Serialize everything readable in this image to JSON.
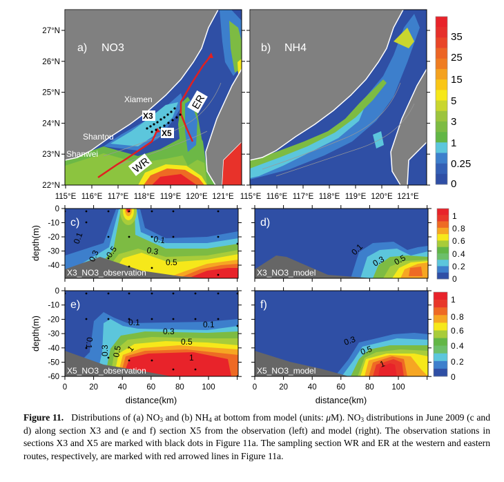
{
  "map_panels": {
    "a": {
      "label": "a)",
      "title": "NO3"
    },
    "b": {
      "label": "b)",
      "title": "NH4"
    },
    "places": {
      "xiamen": "Xiamen",
      "shantou": "Shantou",
      "shanwei": "Shanwei"
    },
    "sections": {
      "x3": "X3",
      "x5": "X5"
    },
    "routes": {
      "wr": "WR",
      "er": "ER"
    },
    "lat_ticks": [
      {
        "v": 27,
        "t": "27°N"
      },
      {
        "v": 26,
        "t": "26°N"
      },
      {
        "v": 25,
        "t": "25°N"
      },
      {
        "v": 24,
        "t": "24°N"
      },
      {
        "v": 23,
        "t": "23°N"
      },
      {
        "v": 22,
        "t": "22°N"
      }
    ],
    "lon_ticks": [
      {
        "v": 115,
        "t": "115°E"
      },
      {
        "v": 116,
        "t": "116°E"
      },
      {
        "v": 117,
        "t": "117°E"
      },
      {
        "v": 118,
        "t": "118°E"
      },
      {
        "v": 119,
        "t": "119°E"
      },
      {
        "v": 120,
        "t": "120°E"
      },
      {
        "v": 121,
        "t": "121°E"
      }
    ]
  },
  "colorbar_map": {
    "labels": [
      "35",
      "25",
      "15",
      "5",
      "3",
      "1",
      "0.25",
      "0"
    ],
    "colors": [
      "#e8232a",
      "#e6302b",
      "#e94628",
      "#ec6525",
      "#ef7d22",
      "#f4a21f",
      "#f9c616",
      "#f6e81a",
      "#c9d62e",
      "#9cc43d",
      "#7dbb43",
      "#62b646",
      "#5cc6dc",
      "#3d7fcc",
      "#3460b5",
      "#2f4fa5"
    ]
  },
  "colorbar_section": {
    "labels": [
      "1",
      "0.8",
      "0.6",
      "0.4",
      "0.2",
      "0"
    ],
    "colors": [
      "#e8232a",
      "#e8382a",
      "#ee6a24",
      "#f6a623",
      "#f6e81a",
      "#a8cc3a",
      "#62b646",
      "#6cbf6a",
      "#5cc6dc",
      "#3d7fcc",
      "#2f4fa5"
    ]
  },
  "sections": {
    "c": {
      "label": "c)",
      "name": "X3_NO3_observation",
      "contours": [
        "0.1",
        "0.3",
        "0.5",
        "0.1",
        "0.3",
        "0.5"
      ]
    },
    "d": {
      "label": "d)",
      "name": "X3_NO3_model",
      "contours": [
        "0.1",
        "0.3",
        "0.5"
      ]
    },
    "e": {
      "label": "e)",
      "name": "X5_NO3_observation",
      "contours": [
        "0.1",
        "0.1",
        "0.3",
        "0.5",
        "0.1",
        "0.3",
        "0.5",
        "1",
        "1"
      ]
    },
    "f": {
      "label": "f)",
      "name": "X5_NO3_model",
      "contours": [
        "0.3",
        "0.5",
        "1"
      ]
    },
    "depth_ticks_x3": [
      0,
      -10,
      -20,
      -30,
      -40
    ],
    "depth_ticks_x5": [
      0,
      -10,
      -20,
      -30,
      -40,
      -50,
      -60
    ],
    "distance_ticks": [
      0,
      20,
      40,
      60,
      80,
      100
    ],
    "ylabel": "depth(m)",
    "xlabel": "distance(km)"
  },
  "caption": {
    "parts": [
      "Figure 11.",
      "   Distributions of (a) NO",
      "3",
      " and (b) NH",
      "4",
      " at bottom from model (units: ",
      "μ",
      "M). NO",
      "3",
      " distributions in June 2009 (c and d) along section X3 and (e and f) section X5 from the observation (left) and model (right). The observation stations in sections X3 and X5 are marked with black dots in Figure 11a. The sampling section WR and ER at the western and eastern routes, respectively, are marked with red arrowed lines in Figure 11a."
    ]
  }
}
